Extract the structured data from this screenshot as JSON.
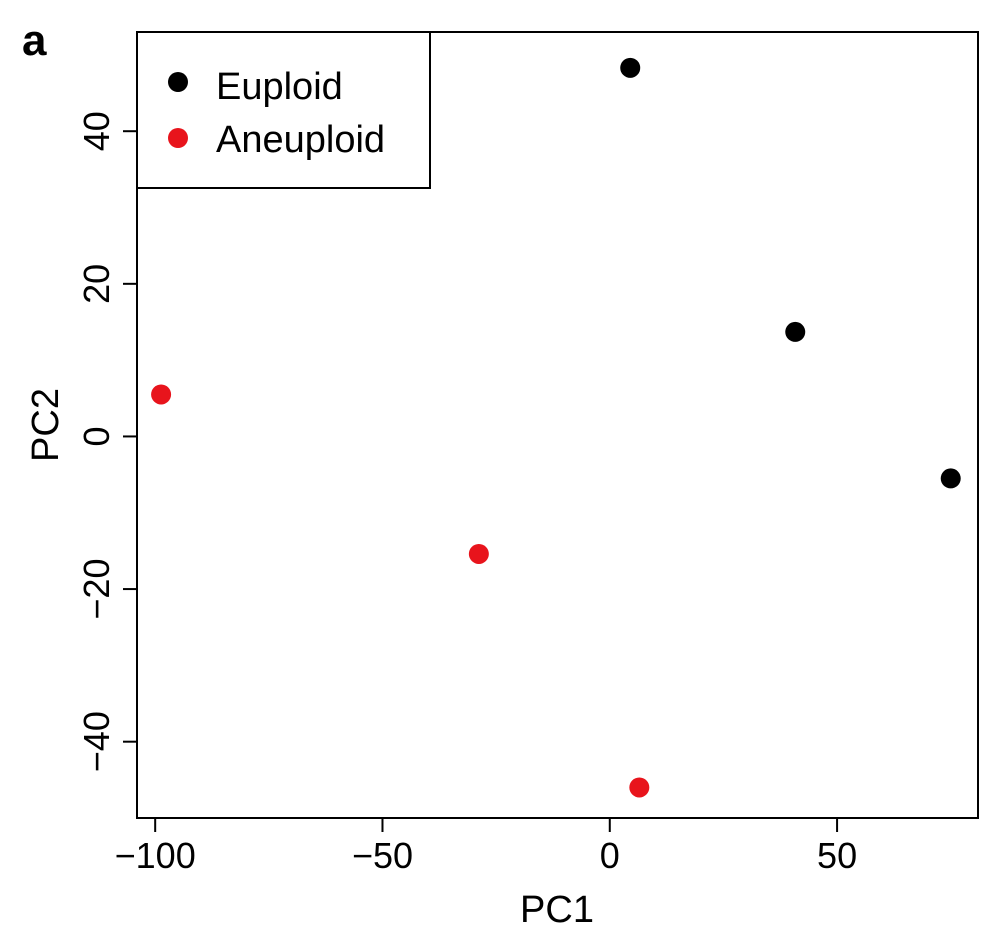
{
  "panel_label": "a",
  "chart_data": {
    "type": "scatter",
    "xlabel": "PC1",
    "ylabel": "PC2",
    "xlim": [
      -104,
      81
    ],
    "ylim": [
      -50,
      53
    ],
    "xticks": [
      -100,
      -50,
      0,
      50
    ],
    "xtick_labels": [
      "−100",
      "−50",
      "0",
      "50"
    ],
    "yticks": [
      -40,
      -20,
      0,
      20,
      40
    ],
    "ytick_labels": [
      "−40",
      "−20",
      "0",
      "20",
      "40"
    ],
    "grid": false,
    "legend_position": "top-left",
    "series": [
      {
        "name": "Euploid",
        "color": "#000000",
        "points": [
          {
            "x": 4.5,
            "y": 48.3
          },
          {
            "x": 40.8,
            "y": 13.7
          },
          {
            "x": 75.0,
            "y": -5.5
          }
        ]
      },
      {
        "name": "Aneuploid",
        "color": "#e8141c",
        "points": [
          {
            "x": -98.7,
            "y": 5.5
          },
          {
            "x": -28.8,
            "y": -15.4
          },
          {
            "x": 6.5,
            "y": -46.0
          }
        ]
      }
    ]
  }
}
